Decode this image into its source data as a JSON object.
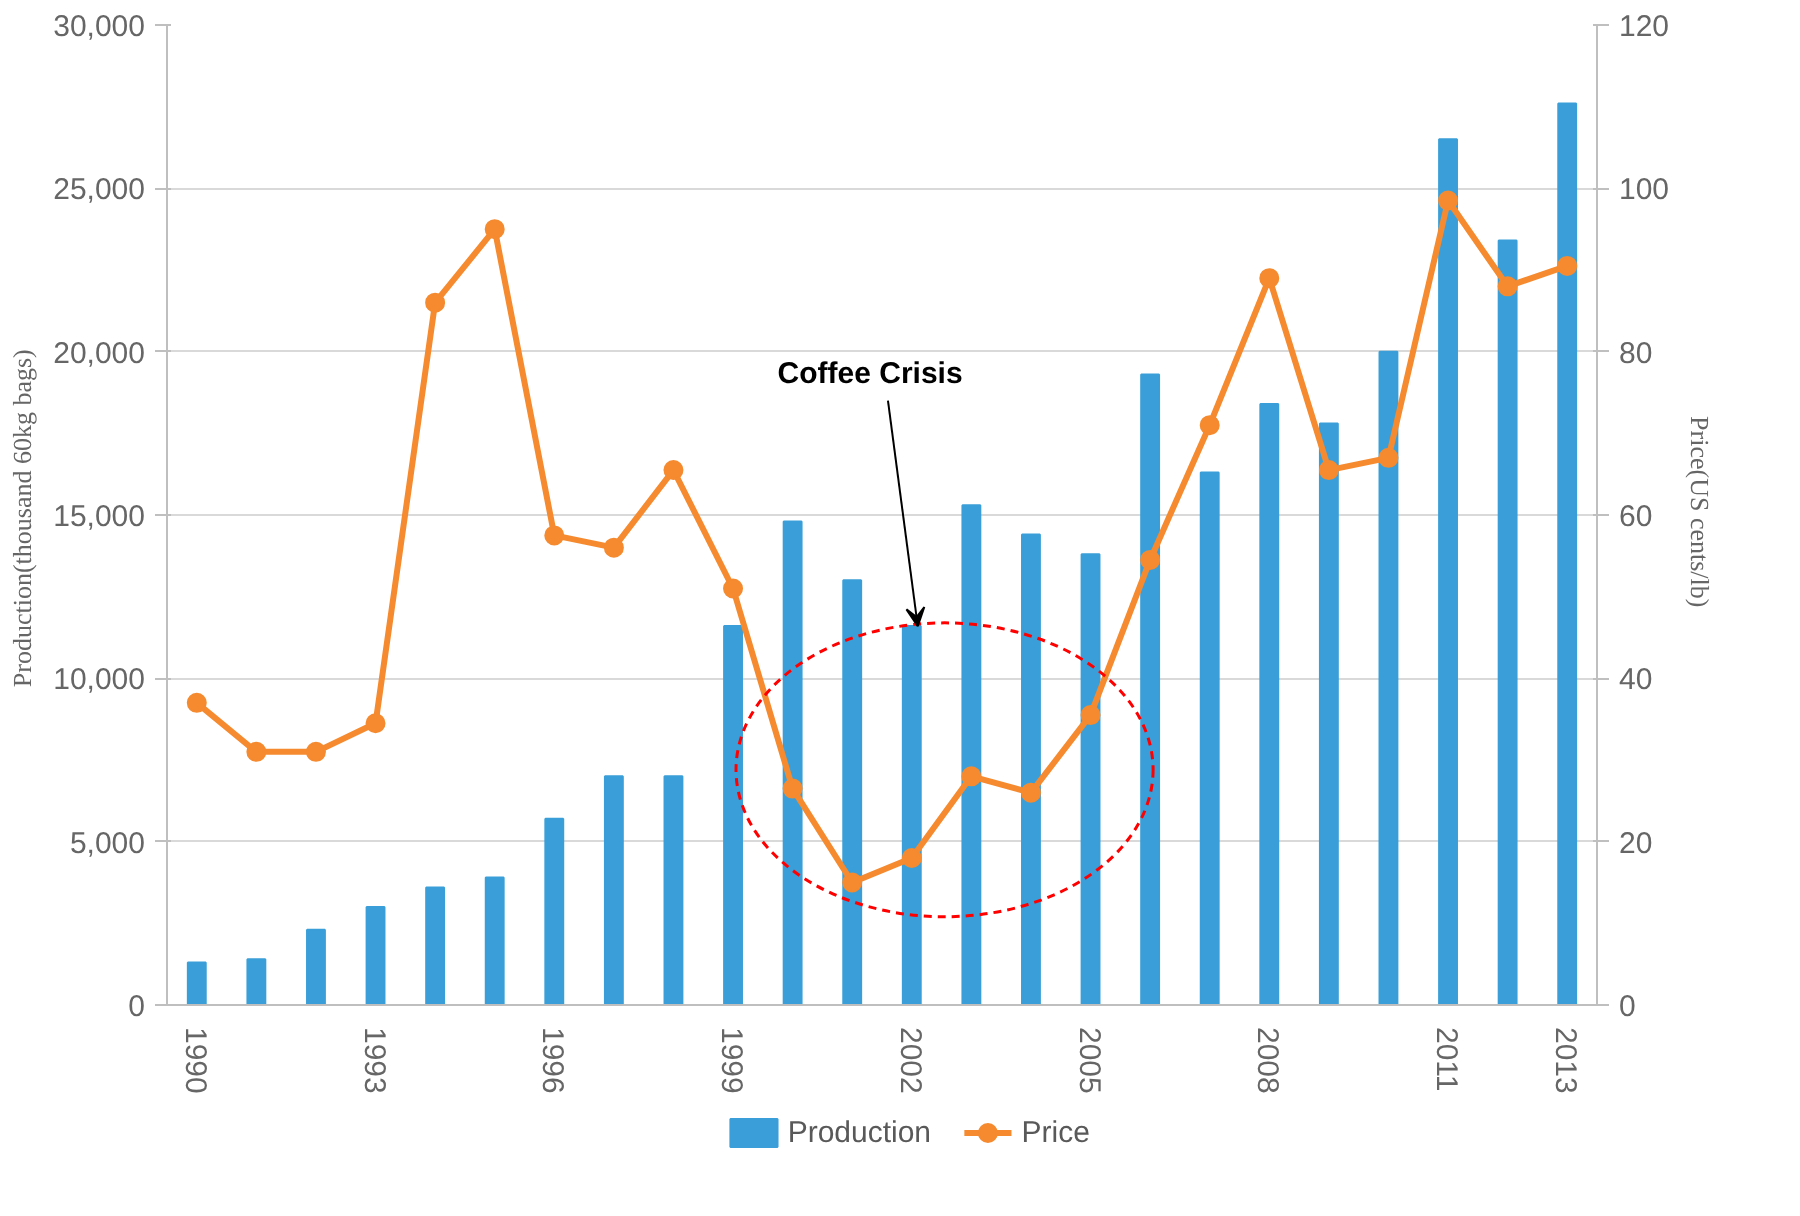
{
  "chart_data": {
    "type": "bar",
    "categories": [
      "1990",
      null,
      null,
      "1993",
      null,
      null,
      "1996",
      null,
      null,
      "1999",
      null,
      null,
      "2002",
      null,
      null,
      "2005",
      null,
      null,
      "2008",
      null,
      null,
      "2011",
      null,
      "2013"
    ],
    "series": [
      {
        "name": "Production",
        "color": "#3a9fd8",
        "values": [
          1300,
          1400,
          2300,
          3000,
          3600,
          3900,
          5700,
          7000,
          7000,
          11600,
          14800,
          13000,
          11600,
          15300,
          14400,
          13800,
          19300,
          16300,
          18400,
          17800,
          20000,
          26500,
          23400,
          27600
        ]
      },
      {
        "name": "Price",
        "type": "line",
        "axis": "y2",
        "color": "#f58a2f",
        "marker": "circle",
        "values": [
          37,
          31,
          31,
          34.5,
          86,
          95,
          57.5,
          56,
          65.5,
          51,
          26.5,
          15,
          18,
          28,
          26,
          35.5,
          54.5,
          71,
          89,
          65.5,
          67,
          98.5,
          88,
          90.5
        ]
      }
    ],
    "ylabel": "Production(thousand  60kg bags)",
    "y2label": "Price(US  cents/lb)",
    "ylim": [
      0,
      30000
    ],
    "yticks": [
      {
        "value": 0,
        "label": "0"
      },
      {
        "value": 5000,
        "label": "5,000"
      },
      {
        "value": 10000,
        "label": "10,000"
      },
      {
        "value": 15000,
        "label": "15,000"
      },
      {
        "value": 20000,
        "label": "20,000"
      },
      {
        "value": 25000,
        "label": "25,000"
      },
      {
        "value": 30000,
        "label": "30,000"
      }
    ],
    "y2lim": [
      0,
      120
    ],
    "y2ticks": [
      0,
      20,
      40,
      60,
      80,
      100,
      120
    ],
    "annotations": [
      {
        "text": "Coffee Crisis",
        "x": "2002",
        "y": 11600
      }
    ],
    "grid": "y",
    "legend": "bottom"
  }
}
